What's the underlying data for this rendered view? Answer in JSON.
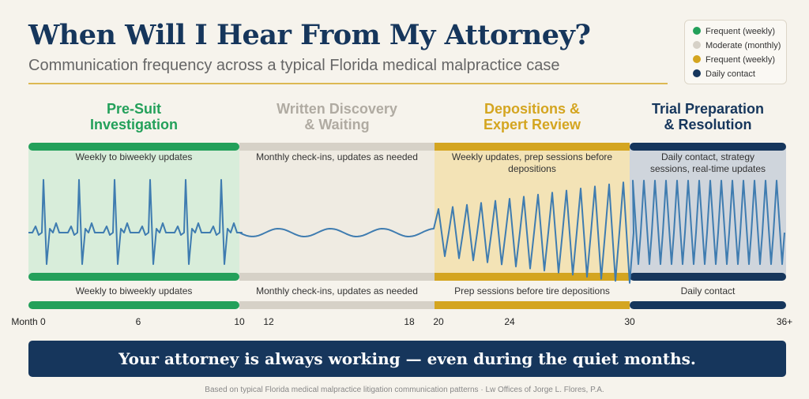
{
  "header": {
    "title": "When Will I Hear From My Attorney?",
    "subtitle": "Communication frequency across a typical Florida medical malpractice case"
  },
  "legend": [
    "Frequent (weekly)",
    "Moderate (monthly)",
    "Frequent (weekly)",
    "Daily contact"
  ],
  "phases": [
    {
      "title": [
        "Pre-Suit",
        "Investigation"
      ],
      "description": "Weekly to biweekly updates",
      "summary": "Weekly to biweekly updates"
    },
    {
      "title": [
        "Written Discovery",
        "& Waiting"
      ],
      "description": "Monthly check-ins, updates as needed",
      "summary": "Monthly check-ins, updates as needed"
    },
    {
      "title": [
        "Depositions &",
        "Expert Review"
      ],
      "description": "Weekly updates, prep sessions before depositions",
      "summary": "Prep sessions before tire depositions"
    },
    {
      "title": [
        "Trial Preparation",
        "& Resolution"
      ],
      "description": "Daily contact, strategy sessions, real-time updates",
      "summary": "Daily contact"
    }
  ],
  "timeline": [
    "Month 0",
    "6",
    "10",
    "12",
    "18",
    "20",
    "24",
    "30",
    "36+"
  ],
  "banner": "Your attorney is always working — even during the quiet months.",
  "footer": "Based on typical Florida medical malpractice litigation communication patterns · Lw Offices of Jorge L. Flores, P.A."
}
